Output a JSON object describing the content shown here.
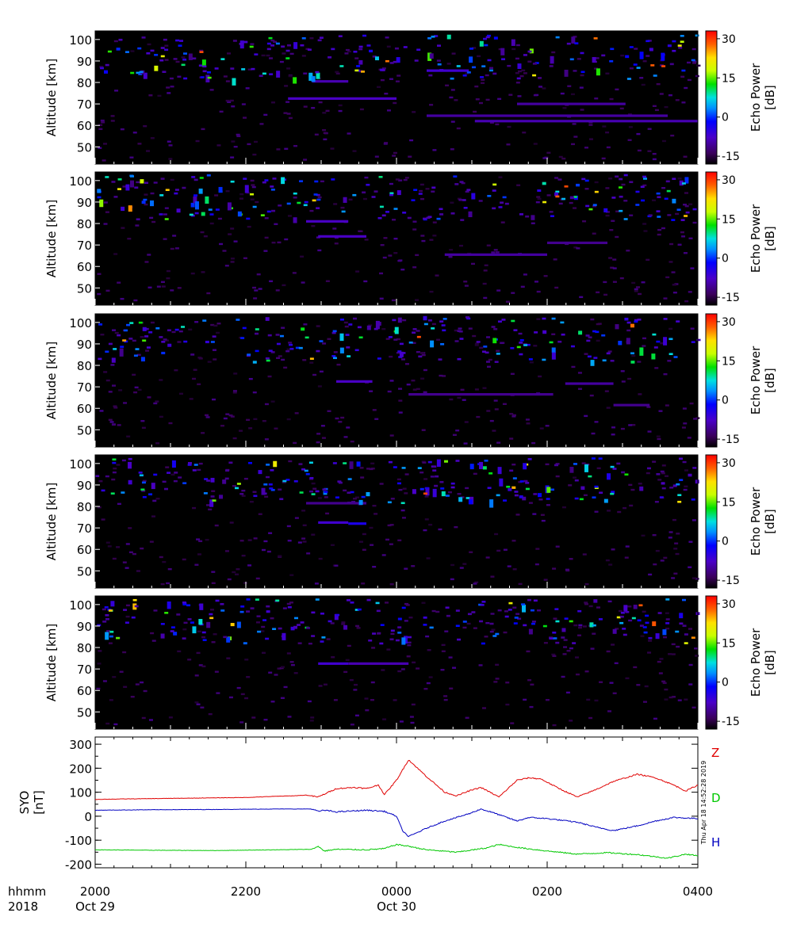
{
  "chart_data": [
    {
      "type": "heatmap",
      "ylabel": "Altitude [km]",
      "yticks": [
        50,
        60,
        70,
        80,
        90,
        100
      ],
      "ylim": [
        42,
        104
      ],
      "colorbar": {
        "label": "Echo Power",
        "unit": "[dB]",
        "ticks": [
          "30",
          "15",
          "0",
          "-15"
        ],
        "range": [
          -18,
          33
        ]
      },
      "layers": [
        {
          "alt": 72.5,
          "t0": 0.32,
          "t1": 0.5,
          "power": -8
        },
        {
          "alt": 80.5,
          "t0": 0.36,
          "t1": 0.42,
          "power": -9
        },
        {
          "alt": 85.5,
          "t0": 0.55,
          "t1": 0.62,
          "power": -7
        },
        {
          "alt": 62,
          "t0": 0.63,
          "t1": 1.0,
          "power": -9
        },
        {
          "alt": 64.5,
          "t0": 0.55,
          "t1": 0.95,
          "power": -10
        },
        {
          "alt": 70,
          "t0": 0.7,
          "t1": 0.88,
          "power": -10
        }
      ]
    },
    {
      "type": "heatmap",
      "ylabel": "Altitude [km]",
      "yticks": [
        50,
        60,
        70,
        80,
        90,
        100
      ],
      "ylim": [
        42,
        104
      ],
      "colorbar": {
        "label": "Echo Power",
        "unit": "[dB]",
        "ticks": [
          "30",
          "15",
          "0",
          "-15"
        ],
        "range": [
          -18,
          33
        ]
      },
      "layers": [
        {
          "alt": 81,
          "t0": 0.35,
          "t1": 0.42,
          "power": -8
        },
        {
          "alt": 74,
          "t0": 0.37,
          "t1": 0.45,
          "power": -8
        },
        {
          "alt": 65.5,
          "t0": 0.58,
          "t1": 0.75,
          "power": -10
        },
        {
          "alt": 71,
          "t0": 0.75,
          "t1": 0.85,
          "power": -11
        }
      ]
    },
    {
      "type": "heatmap",
      "ylabel": "Altitude [km]",
      "yticks": [
        50,
        60,
        70,
        80,
        90,
        100
      ],
      "ylim": [
        42,
        104
      ],
      "colorbar": {
        "label": "Echo Power",
        "unit": "[dB]",
        "ticks": [
          "30",
          "15",
          "0",
          "-15"
        ],
        "range": [
          -18,
          33
        ]
      },
      "layers": [
        {
          "alt": 72.5,
          "t0": 0.4,
          "t1": 0.46,
          "power": -8
        },
        {
          "alt": 66.5,
          "t0": 0.52,
          "t1": 0.76,
          "power": -11
        },
        {
          "alt": 71.5,
          "t0": 0.78,
          "t1": 0.86,
          "power": -10
        },
        {
          "alt": 61.5,
          "t0": 0.86,
          "t1": 0.92,
          "power": -11
        }
      ]
    },
    {
      "type": "heatmap",
      "ylabel": "Altitude [km]",
      "yticks": [
        50,
        60,
        70,
        80,
        90,
        100
      ],
      "ylim": [
        42,
        104
      ],
      "colorbar": {
        "label": "Echo Power",
        "unit": "[dB]",
        "ticks": [
          "30",
          "15",
          "0",
          "-15"
        ],
        "range": [
          -18,
          33
        ]
      },
      "layers": [
        {
          "alt": 72.5,
          "t0": 0.37,
          "t1": 0.42,
          "power": -7
        },
        {
          "alt": 72,
          "t0": 0.42,
          "t1": 0.45,
          "power": -4
        },
        {
          "alt": 81.5,
          "t0": 0.35,
          "t1": 0.45,
          "power": -11
        }
      ]
    },
    {
      "type": "heatmap",
      "ylabel": "Altitude [km]",
      "yticks": [
        50,
        60,
        70,
        80,
        90,
        100
      ],
      "ylim": [
        42,
        104
      ],
      "colorbar": {
        "label": "Echo Power",
        "unit": "[dB]",
        "ticks": [
          "30",
          "15",
          "0",
          "-15"
        ],
        "range": [
          -18,
          33
        ]
      },
      "layers": [
        {
          "alt": 72.5,
          "t0": 0.37,
          "t1": 0.42,
          "power": -7
        },
        {
          "alt": 72.5,
          "t0": 0.42,
          "t1": 0.52,
          "power": -9
        }
      ]
    },
    {
      "type": "line",
      "ylabel": "SYO",
      "yunit": "[nT]",
      "ylim": [
        -215,
        330
      ],
      "yticks": [
        300,
        200,
        100,
        0,
        -100,
        -200
      ],
      "series": [
        {
          "name": "Z",
          "color": "#e00000",
          "x": [
            0,
            0.05,
            0.15,
            0.25,
            0.3,
            0.33,
            0.35,
            0.37,
            0.4,
            0.43,
            0.45,
            0.47,
            0.48,
            0.5,
            0.52,
            0.55,
            0.58,
            0.6,
            0.62,
            0.64,
            0.67,
            0.7,
            0.72,
            0.74,
            0.77,
            0.8,
            0.83,
            0.86,
            0.9,
            0.93,
            0.96,
            0.98,
            1.0
          ],
          "y": [
            70,
            72,
            75,
            78,
            83,
            85,
            88,
            80,
            115,
            120,
            115,
            130,
            90,
            150,
            235,
            165,
            100,
            85,
            105,
            120,
            80,
            150,
            160,
            155,
            115,
            80,
            110,
            145,
            175,
            160,
            130,
            105,
            130
          ]
        },
        {
          "name": "D",
          "color": "#00c800",
          "x": [
            0,
            0.1,
            0.2,
            0.3,
            0.36,
            0.37,
            0.38,
            0.4,
            0.45,
            0.48,
            0.5,
            0.52,
            0.55,
            0.6,
            0.65,
            0.67,
            0.7,
            0.75,
            0.8,
            0.85,
            0.9,
            0.95,
            0.98,
            1.0
          ],
          "y": [
            -140,
            -142,
            -143,
            -140,
            -138,
            -125,
            -145,
            -138,
            -140,
            -135,
            -118,
            -125,
            -140,
            -150,
            -132,
            -118,
            -130,
            -145,
            -158,
            -152,
            -160,
            -175,
            -158,
            -165
          ]
        },
        {
          "name": "H",
          "color": "#0000c0",
          "x": [
            0,
            0.1,
            0.2,
            0.3,
            0.36,
            0.37,
            0.38,
            0.4,
            0.45,
            0.48,
            0.5,
            0.51,
            0.52,
            0.55,
            0.58,
            0.62,
            0.64,
            0.66,
            0.7,
            0.72,
            0.75,
            0.8,
            0.83,
            0.86,
            0.9,
            0.93,
            0.96,
            1.0
          ],
          "y": [
            25,
            27,
            28,
            30,
            30,
            20,
            25,
            18,
            25,
            20,
            0,
            -60,
            -85,
            -50,
            -20,
            10,
            30,
            15,
            -20,
            -5,
            -10,
            -25,
            -45,
            -60,
            -40,
            -20,
            -5,
            -10
          ]
        }
      ],
      "legend": [
        "Z",
        "D",
        "H"
      ],
      "legend_placement": "right"
    }
  ],
  "time_axis": {
    "axis_label_1": "hhmm",
    "axis_label_2": "2018",
    "ticks": [
      {
        "label": "2000",
        "date": "Oct 29",
        "frac": 0.0
      },
      {
        "label": "2200",
        "date": "",
        "frac": 0.25
      },
      {
        "label": "0000",
        "date": "Oct 30",
        "frac": 0.5
      },
      {
        "label": "0200",
        "date": "",
        "frac": 0.75
      },
      {
        "label": "0400",
        "date": "",
        "frac": 1.0
      }
    ]
  },
  "timestamp": "Thu Apr 18 14:52:28 2019"
}
